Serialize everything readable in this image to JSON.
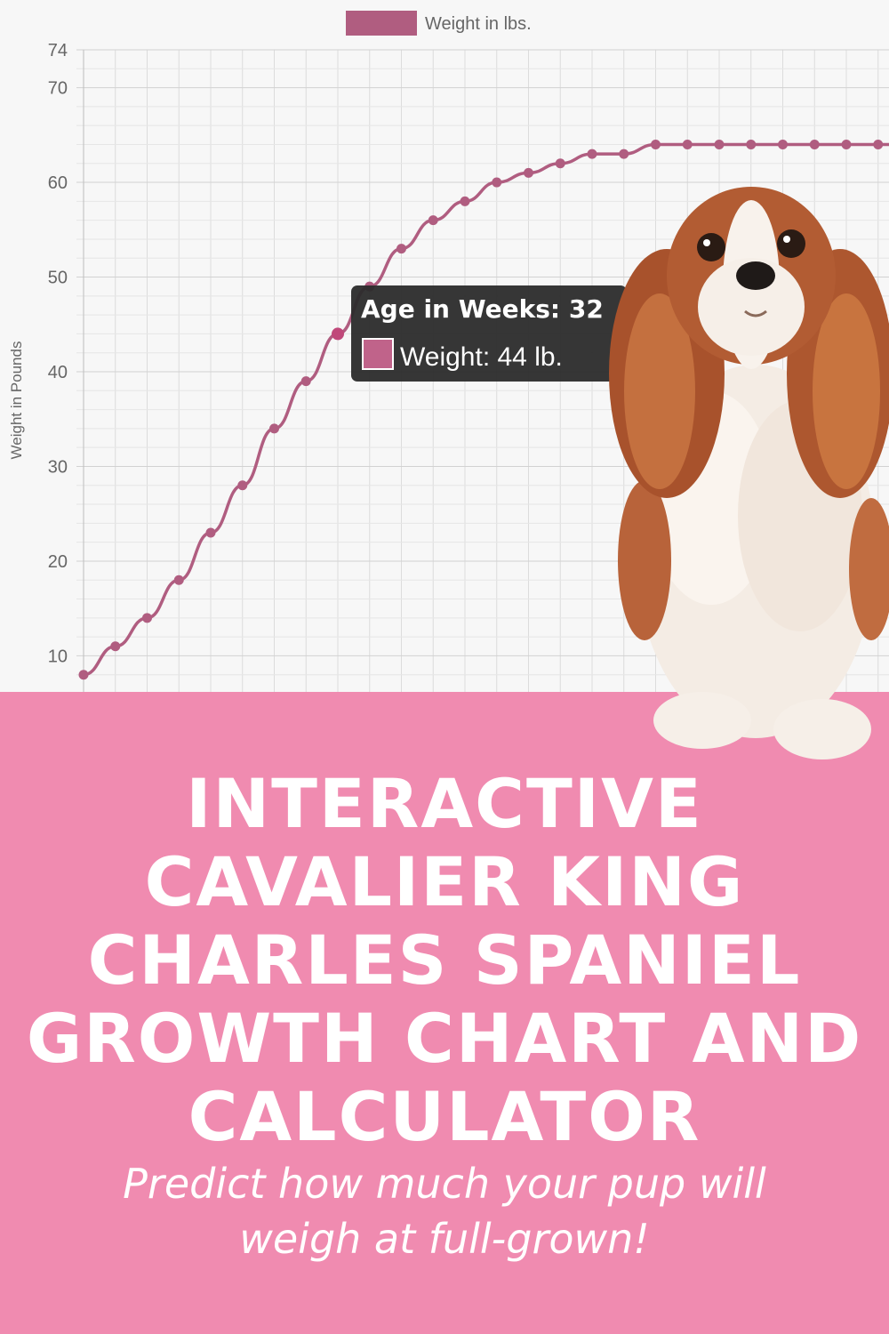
{
  "chart_data": {
    "type": "line",
    "legend": {
      "label": "Weight in lbs.",
      "position": "top-center"
    },
    "ylabel": "Weight in Pounds",
    "ylim": [
      6,
      74
    ],
    "yticks": [
      10,
      20,
      30,
      40,
      50,
      60,
      70,
      74
    ],
    "grid": true,
    "line_color": "#b05d80",
    "series": [
      {
        "name": "Weight in lbs.",
        "values": [
          8,
          11,
          14,
          18,
          23,
          28,
          34,
          39,
          44,
          49,
          53,
          56,
          58,
          60,
          61,
          62,
          63,
          63,
          64,
          64,
          64,
          64,
          64,
          64,
          64,
          64,
          64
        ]
      }
    ],
    "tooltip": {
      "title": "Age in Weeks: 32",
      "label": "Weight: 44 lb.",
      "point_index": 8
    }
  },
  "banner": {
    "headline_lines": [
      "INTERACTIVE",
      "CAVALIER KING",
      "CHARLES SPANIEL",
      "GROWTH CHART AND",
      "CALCULATOR"
    ],
    "subline_lines": [
      "Predict how much your pup will",
      "weigh at full-grown!"
    ],
    "background_color": "#f08bb0"
  }
}
